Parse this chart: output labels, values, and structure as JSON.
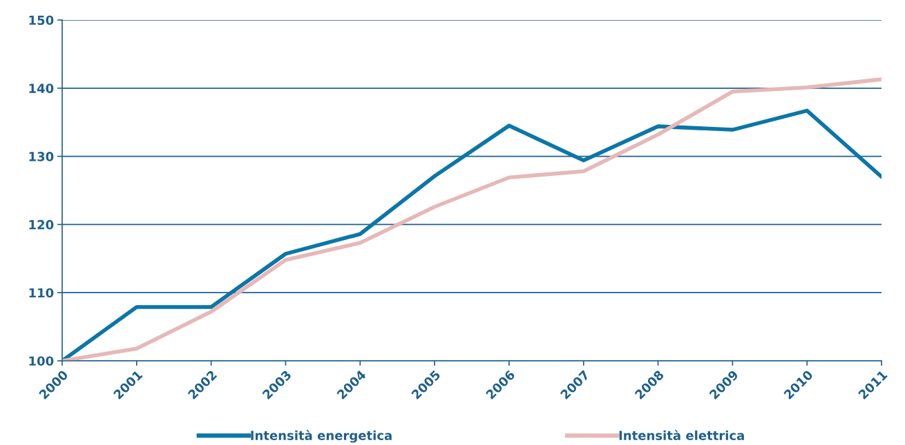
{
  "chart_data": {
    "type": "line",
    "categories": [
      "2000",
      "2001",
      "2002",
      "2003",
      "2004",
      "2005",
      "2006",
      "2007",
      "2008",
      "2009",
      "2010",
      "2011"
    ],
    "series": [
      {
        "name": "Intensità energetica",
        "color": "#0b76a8",
        "values": [
          100,
          107.9,
          107.9,
          115.7,
          118.6,
          127.1,
          134.5,
          129.4,
          134.4,
          133.9,
          136.7,
          127.0
        ]
      },
      {
        "name": "Intensità elettrica",
        "color": "#e6b8b7",
        "values": [
          100,
          101.8,
          107.2,
          114.8,
          117.3,
          122.6,
          126.9,
          127.8,
          133.2,
          139.5,
          140.1,
          141.3
        ]
      }
    ],
    "ylim": [
      100,
      150
    ],
    "yticks": [
      100,
      110,
      120,
      130,
      140,
      150
    ],
    "grid": "y",
    "legend": "bottom",
    "marker": "none",
    "line_style": "solid"
  }
}
